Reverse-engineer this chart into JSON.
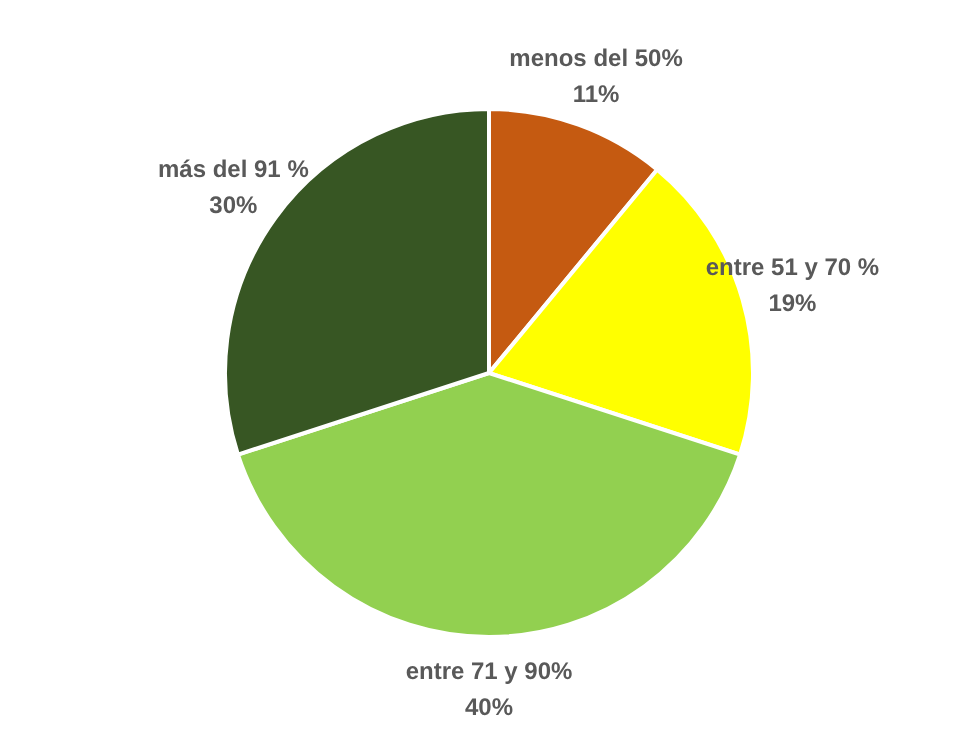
{
  "chart_data": {
    "type": "pie",
    "categories": [
      "menos del 50%",
      "entre 51 y 70 %",
      "entre 71 y 90%",
      "más del 91 %"
    ],
    "values": [
      11,
      19,
      40,
      30
    ],
    "colors": [
      "#c55a11",
      "#ffff00",
      "#92d050",
      "#375623"
    ],
    "value_labels": [
      "11%",
      "19%",
      "40%",
      "30%"
    ]
  }
}
